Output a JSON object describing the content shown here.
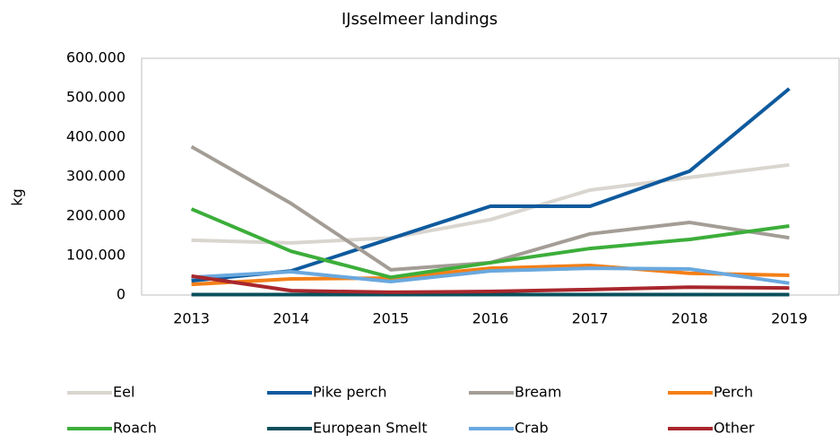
{
  "chart_data": {
    "type": "line",
    "title": "IJsselmeer landings",
    "ylabel": "kg",
    "categories": [
      "2013",
      "2014",
      "2015",
      "2016",
      "2017",
      "2018",
      "2019"
    ],
    "series": [
      {
        "name": "Eel",
        "color": "#d9d5cf",
        "values": [
          139000,
          132000,
          145000,
          191000,
          266000,
          298000,
          330000
        ]
      },
      {
        "name": "Pike perch",
        "color": "#0e5a9e",
        "values": [
          36000,
          61000,
          143000,
          225000,
          225000,
          314000,
          523000
        ]
      },
      {
        "name": "Bream",
        "color": "#a39d96",
        "values": [
          376000,
          232000,
          64000,
          82000,
          155000,
          184000,
          145000
        ]
      },
      {
        "name": "Perch",
        "color": "#f47f16",
        "values": [
          27000,
          41000,
          43000,
          68000,
          75000,
          55000,
          50000
        ]
      },
      {
        "name": "Roach",
        "color": "#3cae3a",
        "values": [
          218000,
          111000,
          45000,
          82000,
          118000,
          141000,
          175000
        ]
      },
      {
        "name": "European Smelt",
        "color": "#0a4f5c",
        "values": [
          1000,
          1000,
          1000,
          1000,
          1000,
          1000,
          1000
        ]
      },
      {
        "name": "Crab",
        "color": "#6aa8de",
        "values": [
          45000,
          59000,
          34000,
          61000,
          68000,
          66000,
          30000
        ]
      },
      {
        "name": "Other",
        "color": "#a8272c",
        "values": [
          48000,
          11000,
          7000,
          9000,
          14000,
          20000,
          18000
        ]
      }
    ],
    "ylim": [
      0,
      600000
    ],
    "yticks": [
      0,
      {
        "value": 100000,
        "label": "100.000"
      },
      {
        "value": 200000,
        "label": "200.000"
      },
      {
        "value": 300000,
        "label": "300.000"
      },
      {
        "value": 400000,
        "label": "400.000"
      },
      {
        "value": 500000,
        "label": "500.000"
      },
      {
        "value": 600000,
        "label": "600.000"
      }
    ],
    "grid": false,
    "legend": "bottom"
  }
}
